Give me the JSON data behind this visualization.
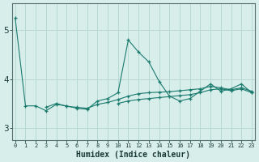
{
  "title": "",
  "xlabel": "Humidex (Indice chaleur)",
  "ylabel": "",
  "background_color": "#d8eeea",
  "grid_color": "#b8d8d2",
  "line_color": "#1a7a6e",
  "x_data": [
    0,
    1,
    2,
    3,
    4,
    5,
    6,
    7,
    8,
    9,
    10,
    11,
    12,
    13,
    14,
    15,
    16,
    17,
    18,
    19,
    20,
    21,
    22,
    23
  ],
  "series": [
    [
      5.25,
      3.45,
      3.45,
      3.35,
      3.48,
      3.45,
      3.4,
      3.38,
      3.55,
      3.6,
      3.72,
      4.8,
      4.55,
      4.35,
      3.95,
      3.65,
      3.55,
      3.6,
      3.75,
      3.9,
      3.75,
      3.8,
      3.9,
      3.72
    ],
    [
      null,
      null,
      null,
      3.42,
      3.5,
      3.44,
      3.42,
      3.4,
      3.48,
      3.52,
      3.58,
      3.65,
      3.7,
      3.72,
      3.73,
      3.74,
      3.76,
      3.78,
      3.8,
      3.85,
      3.82,
      3.78,
      3.82,
      3.75
    ],
    [
      null,
      null,
      null,
      null,
      null,
      null,
      null,
      null,
      null,
      null,
      3.5,
      3.55,
      3.58,
      3.6,
      3.62,
      3.64,
      3.66,
      3.68,
      3.72,
      3.78,
      3.8,
      3.76,
      3.8,
      3.72
    ]
  ],
  "yticks": [
    3,
    4,
    5
  ],
  "ylim": [
    2.75,
    5.55
  ],
  "xlim": [
    -0.3,
    23.3
  ]
}
